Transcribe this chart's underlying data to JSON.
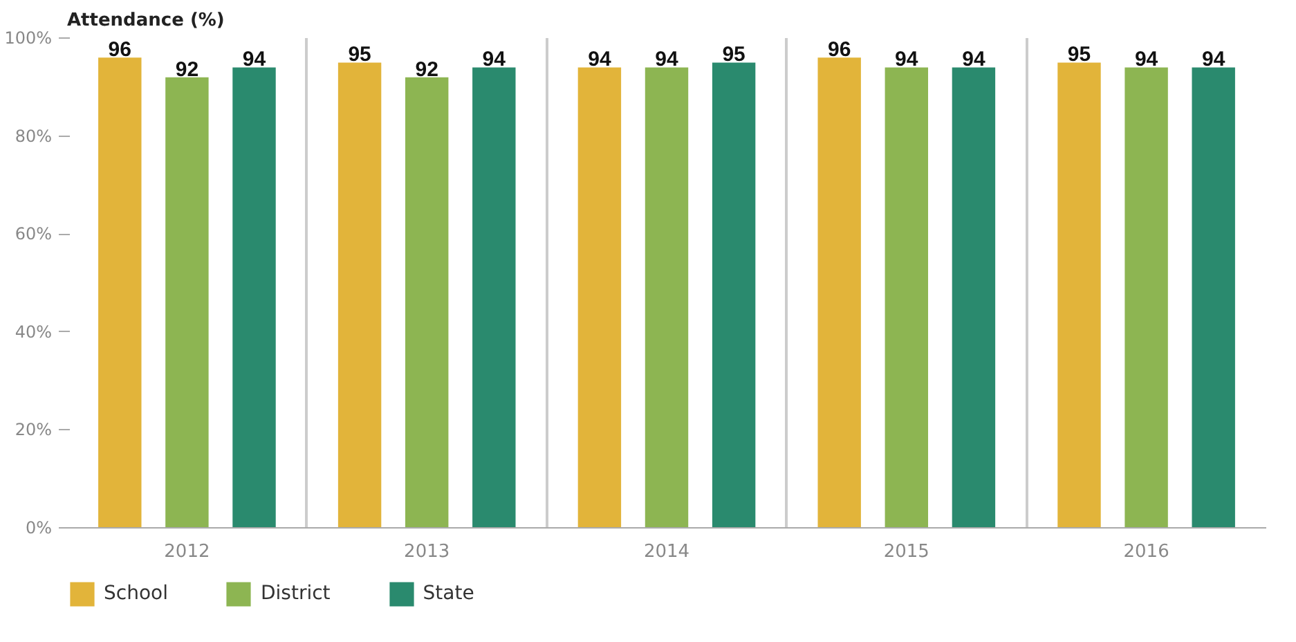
{
  "chart_data": {
    "type": "bar",
    "title": "Attendance (%)",
    "categories": [
      "2012",
      "2013",
      "2014",
      "2015",
      "2016"
    ],
    "series": [
      {
        "name": "School",
        "color": "#e2b43a",
        "values": [
          96,
          95,
          94,
          96,
          95
        ]
      },
      {
        "name": "District",
        "color": "#8db552",
        "values": [
          92,
          92,
          94,
          94,
          94
        ]
      },
      {
        "name": "State",
        "color": "#2a8a6e",
        "values": [
          94,
          94,
          95,
          94,
          94
        ]
      }
    ],
    "ylim": [
      0,
      100
    ],
    "yticks": [
      {
        "value": 0,
        "label": "0%"
      },
      {
        "value": 20,
        "label": "20%"
      },
      {
        "value": 40,
        "label": "40%"
      },
      {
        "value": 60,
        "label": "60%"
      },
      {
        "value": 80,
        "label": "80%"
      },
      {
        "value": 100,
        "label": "100%"
      }
    ],
    "data_labels": true,
    "grid": "x",
    "legend": "bottom left"
  }
}
